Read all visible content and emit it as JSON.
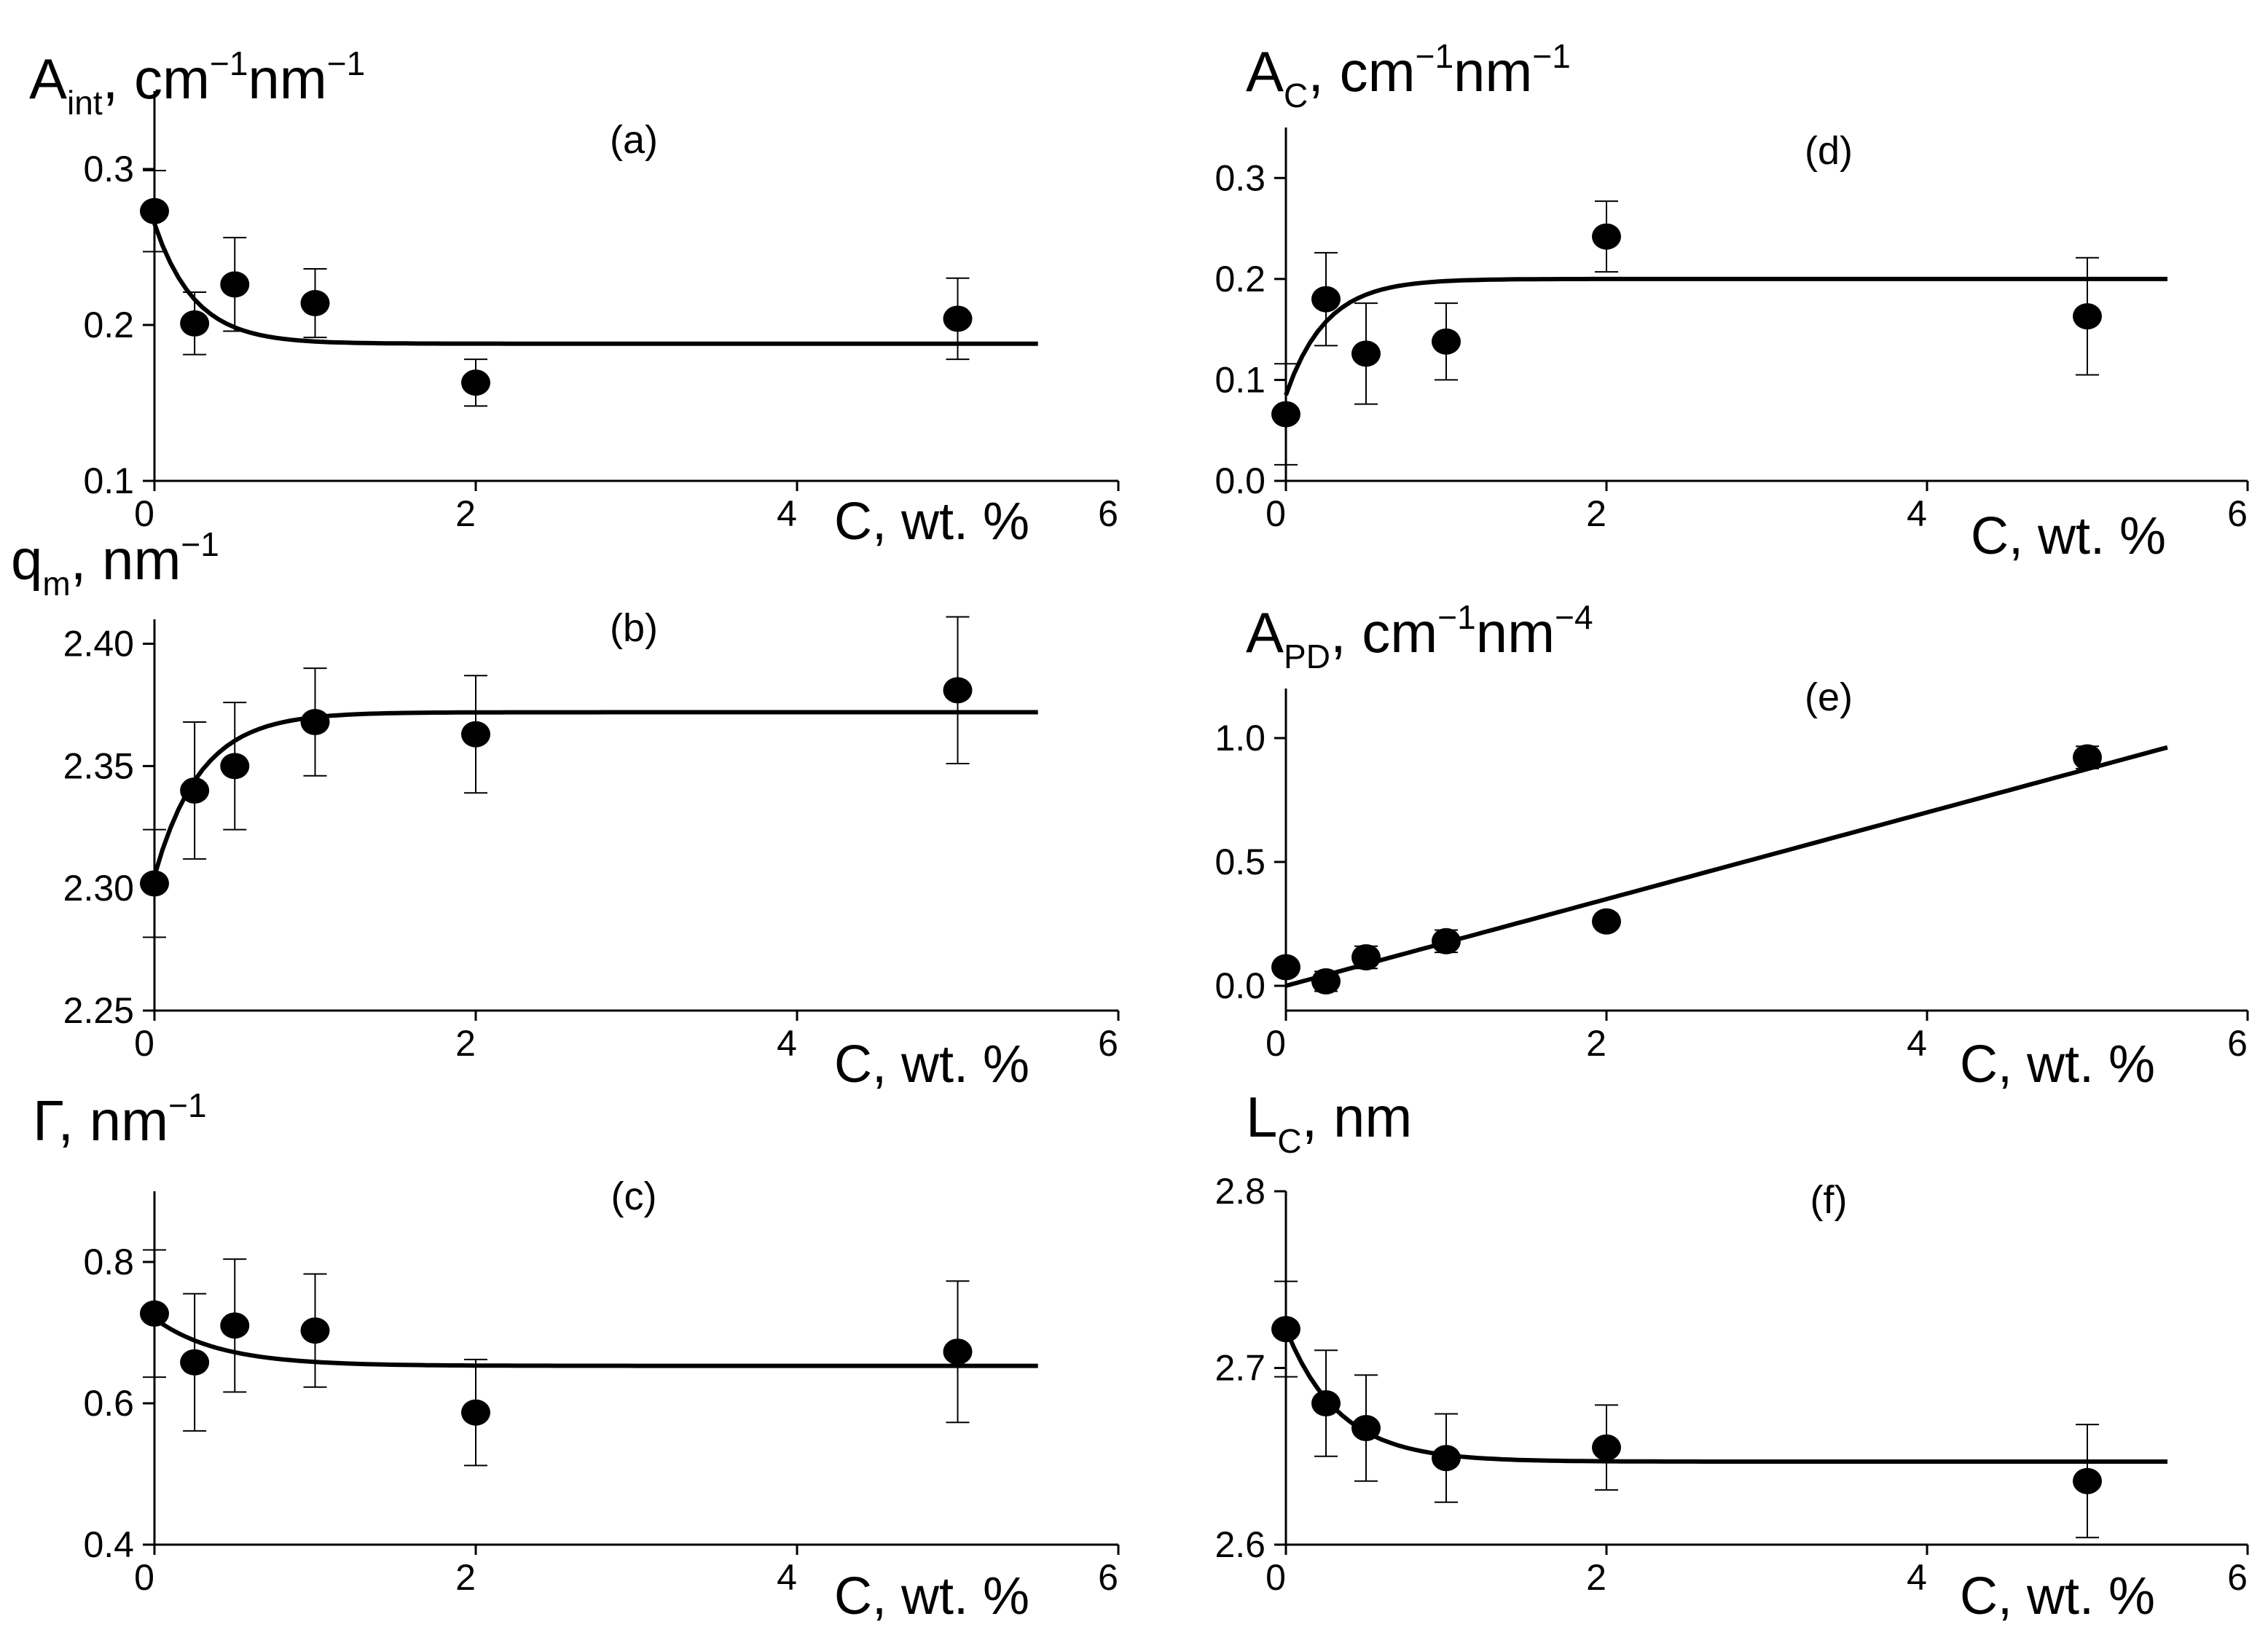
{
  "chart_data": [
    {
      "id": "a",
      "type": "scatter",
      "tag": "(a)",
      "ylabel": {
        "main": "A",
        "sub": "int",
        "after": ", cm",
        "sup1": "−1",
        "mid": "nm",
        "sup2": "−1"
      },
      "xlabel": "C, wt. %",
      "xlim": [
        0,
        6
      ],
      "ylim": [
        0.1,
        0.35
      ],
      "xticks": [
        "0",
        "2",
        "4",
        "6"
      ],
      "yticks": [
        "0.1",
        "0.2",
        "0.3"
      ],
      "series": [
        {
          "name": "data",
          "x": [
            0.0,
            0.25,
            0.5,
            1.0,
            2.0,
            5.0
          ],
          "y": [
            0.273,
            0.201,
            0.226,
            0.214,
            0.163,
            0.204
          ],
          "err": [
            0.026,
            0.02,
            0.03,
            0.022,
            0.015,
            0.026
          ]
        },
        {
          "name": "fit",
          "kind": "exp",
          "A0": 0.265,
          "Ainf": 0.188,
          "k": 4.0,
          "xmax": 5.5,
          "step": 0.05
        }
      ]
    },
    {
      "id": "b",
      "type": "scatter",
      "tag": "(b)",
      "ylabel": {
        "main": "q",
        "sub": "m",
        "after": ", nm",
        "sup1": "−1",
        "mid": "",
        "sup2": ""
      },
      "xlabel": "C, wt. %",
      "xlim": [
        0,
        6
      ],
      "ylim": [
        2.25,
        2.41
      ],
      "xticks": [
        "0",
        "2",
        "4",
        "6"
      ],
      "yticks": [
        "2.25",
        "2.30",
        "2.35",
        "2.40"
      ],
      "series": [
        {
          "name": "data",
          "x": [
            0.0,
            0.25,
            0.5,
            1.0,
            2.0,
            5.0
          ],
          "y": [
            2.302,
            2.34,
            2.35,
            2.368,
            2.363,
            2.381
          ],
          "err": [
            0.022,
            0.028,
            0.026,
            0.022,
            0.024,
            0.03
          ]
        },
        {
          "name": "fit",
          "kind": "exp",
          "A0": 2.305,
          "Ainf": 2.372,
          "k": 3.5,
          "xmax": 5.5,
          "step": 0.05
        }
      ]
    },
    {
      "id": "c",
      "type": "scatter",
      "tag": "(c)",
      "ylabel": {
        "main": "Γ",
        "sub": "",
        "after": ", nm",
        "sup1": "−1",
        "mid": "",
        "sup2": ""
      },
      "xlabel": "C, wt. %",
      "xlim": [
        0,
        6
      ],
      "ylim": [
        0.4,
        0.9
      ],
      "xticks": [
        "0",
        "2",
        "4",
        "6"
      ],
      "yticks": [
        "0.4",
        "0.6",
        "0.8"
      ],
      "series": [
        {
          "name": "data",
          "x": [
            0.0,
            0.25,
            0.5,
            1.0,
            2.0,
            5.0
          ],
          "y": [
            0.727,
            0.658,
            0.71,
            0.703,
            0.587,
            0.673
          ],
          "err": [
            0.09,
            0.097,
            0.094,
            0.08,
            0.075,
            0.1
          ]
        },
        {
          "name": "fit",
          "kind": "exp",
          "A0": 0.72,
          "Ainf": 0.653,
          "k": 2.5,
          "xmax": 5.5,
          "step": 0.05
        }
      ]
    },
    {
      "id": "d",
      "type": "scatter",
      "tag": "(d)",
      "ylabel": {
        "main": "A",
        "sub": "C",
        "after": ", cm",
        "sup1": "−1",
        "mid": "nm",
        "sup2": "−1"
      },
      "xlabel": "C, wt. %",
      "xlim": [
        0,
        6
      ],
      "ylim": [
        0.0,
        0.35
      ],
      "xticks": [
        "0",
        "2",
        "4",
        "6"
      ],
      "yticks": [
        "0.0",
        "0.1",
        "0.2",
        "0.3"
      ],
      "series": [
        {
          "name": "data",
          "x": [
            0.0,
            0.25,
            0.5,
            1.0,
            2.0,
            5.0
          ],
          "y": [
            0.066,
            0.18,
            0.126,
            0.138,
            0.242,
            0.163
          ],
          "err": [
            0.05,
            0.046,
            0.05,
            0.038,
            0.035,
            0.058
          ]
        },
        {
          "name": "fit",
          "kind": "exp",
          "A0": 0.085,
          "Ainf": 0.2,
          "k": 4.0,
          "xmax": 5.5,
          "step": 0.05
        }
      ]
    },
    {
      "id": "e",
      "type": "scatter",
      "tag": "(e)",
      "ylabel": {
        "main": "A",
        "sub": "PD",
        "after": ", cm",
        "sup1": "−1",
        "mid": "nm",
        "sup2": "−4"
      },
      "xlabel": "C, wt. %",
      "xlim": [
        0,
        6
      ],
      "ylim": [
        -0.1,
        1.2
      ],
      "xticks": [
        "0",
        "2",
        "4",
        "6"
      ],
      "yticks": [
        "0.0",
        "0.5",
        "1.0"
      ],
      "series": [
        {
          "name": "data",
          "x": [
            0.0,
            0.25,
            0.5,
            1.0,
            2.0,
            5.0
          ],
          "y": [
            0.075,
            0.018,
            0.115,
            0.18,
            0.26,
            0.922
          ],
          "err": [
            0.03,
            0.04,
            0.045,
            0.045,
            0.03,
            0.045
          ]
        },
        {
          "name": "fit",
          "kind": "linear",
          "a": 0.0,
          "b": 0.175,
          "xmax": 5.5,
          "step": 0.05
        }
      ]
    },
    {
      "id": "f",
      "type": "scatter",
      "tag": "(f)",
      "ylabel": {
        "main": "L",
        "sub": "C",
        "after": ", nm",
        "sup1": "",
        "mid": "",
        "sup2": ""
      },
      "xlabel": "C, wt. %",
      "xlim": [
        0,
        6
      ],
      "ylim": [
        2.6,
        2.8
      ],
      "xticks": [
        "0",
        "2",
        "4",
        "6"
      ],
      "yticks": [
        "2.6",
        "2.7",
        "2.8"
      ],
      "series": [
        {
          "name": "data",
          "x": [
            0.0,
            0.25,
            0.5,
            1.0,
            2.0,
            5.0
          ],
          "y": [
            2.722,
            2.68,
            2.666,
            2.649,
            2.655,
            2.636
          ],
          "err": [
            0.027,
            0.03,
            0.03,
            0.025,
            0.024,
            0.032
          ]
        },
        {
          "name": "fit",
          "kind": "exp",
          "A0": 2.722,
          "Ainf": 2.647,
          "k": 3.0,
          "xmax": 5.5,
          "step": 0.05
        }
      ]
    }
  ]
}
